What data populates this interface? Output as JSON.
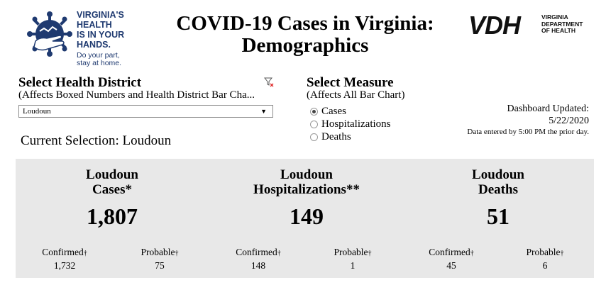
{
  "header": {
    "logo_left_lines": [
      "VIRGINIA'S",
      "HEALTH",
      "IS IN YOUR",
      "HANDS."
    ],
    "logo_left_tagline": [
      "Do your part,",
      "stay at home."
    ],
    "title_line1": "COVID-19 Cases in Virginia:",
    "title_line2": "Demographics",
    "vdh_mark": "VDH",
    "vdh_lines": [
      "VIRGINIA",
      "DEPARTMENT",
      "OF HEALTH"
    ]
  },
  "district": {
    "title": "Select Health District",
    "subtitle": "(Affects Boxed Numbers and Health District Bar Cha...",
    "selected": "Loudoun",
    "current_selection": "Current Selection: Loudoun"
  },
  "measure": {
    "title": "Select Measure",
    "subtitle": "(Affects All Bar Chart)",
    "options": [
      {
        "label": "Cases",
        "selected": true
      },
      {
        "label": "Hospitalizations",
        "selected": false
      },
      {
        "label": "Deaths",
        "selected": false
      }
    ]
  },
  "updated": {
    "label": "Dashboard Updated:",
    "date": "5/22/2020",
    "note": "Data entered by 5:00 PM the prior day."
  },
  "stats": [
    {
      "line1": "Loudoun",
      "line2": "Cases*",
      "total": "1,807",
      "confirmed_label": "Confirmed",
      "confirmed": "1,732",
      "probable_label": "Probable",
      "probable": "75"
    },
    {
      "line1": "Loudoun",
      "line2": "Hospitalizations**",
      "total": "149",
      "confirmed_label": "Confirmed",
      "confirmed": "148",
      "probable_label": "Probable",
      "probable": "1"
    },
    {
      "line1": "Loudoun",
      "line2": "Deaths",
      "total": "51",
      "confirmed_label": "Confirmed",
      "confirmed": "45",
      "probable_label": "Probable",
      "probable": "6"
    }
  ],
  "dagger": "†",
  "colors": {
    "logo_blue": "#1f3a70",
    "panel_bg": "#e8e8e8"
  }
}
